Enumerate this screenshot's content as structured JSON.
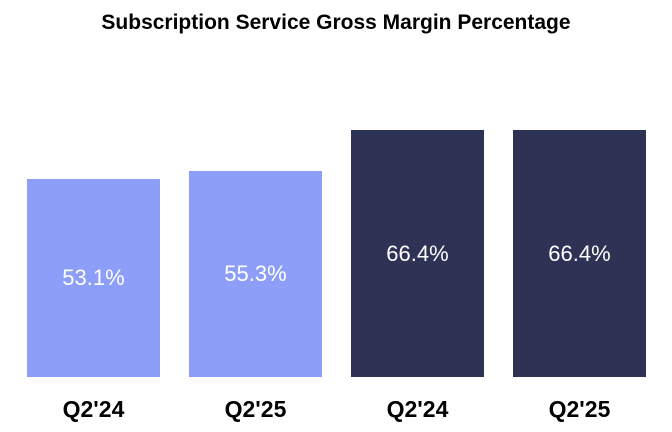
{
  "title": "Subscription Service Gross Margin Percentage",
  "chart_data": {
    "type": "bar",
    "title": "Subscription Service Gross Margin Percentage",
    "categories": [
      "Q2'24",
      "Q2'25",
      "Q2'24",
      "Q2'25"
    ],
    "values": [
      53.1,
      55.3,
      66.4,
      66.4
    ],
    "value_labels": [
      "53.1%",
      "55.3%",
      "66.4%",
      "66.4%"
    ],
    "bar_colors": [
      "#8C9EF7",
      "#8C9EF7",
      "#2E3355",
      "#2E3355"
    ],
    "value_label_color": "#FFFFFF",
    "axis_label_color": "#000000",
    "background_color": "#FFFFFF",
    "xlabel": "",
    "ylabel": "",
    "ylim": [
      0,
      75
    ],
    "grid": false,
    "legend": false,
    "axis_lines": false
  }
}
